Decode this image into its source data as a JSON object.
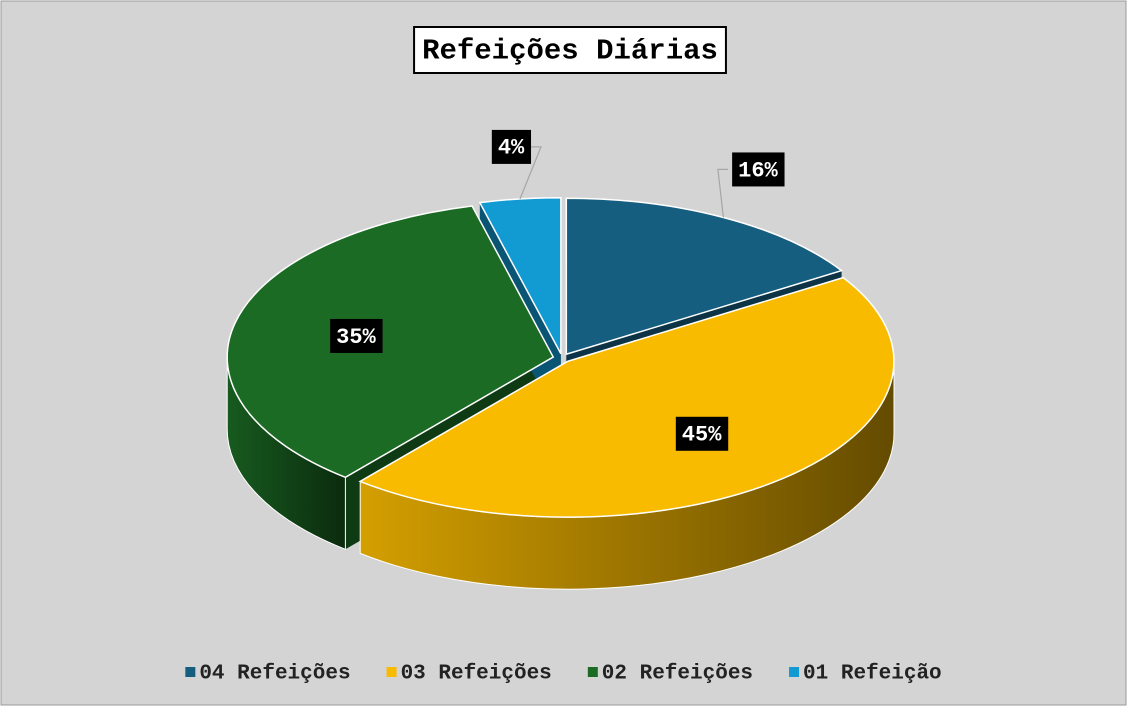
{
  "chart_data": {
    "type": "pie",
    "title": "Refeições Diárias",
    "categories": [
      "04 Refeições",
      "03 Refeições",
      "02 Refeições",
      "01 Refeição"
    ],
    "values": [
      16,
      45,
      35,
      4
    ],
    "value_labels": [
      "16%",
      "45%",
      "35%",
      "4%"
    ],
    "colors": [
      "#155e80",
      "#f9bb00",
      "#1b6b24",
      "#129ad2"
    ],
    "legend": "bottom"
  }
}
